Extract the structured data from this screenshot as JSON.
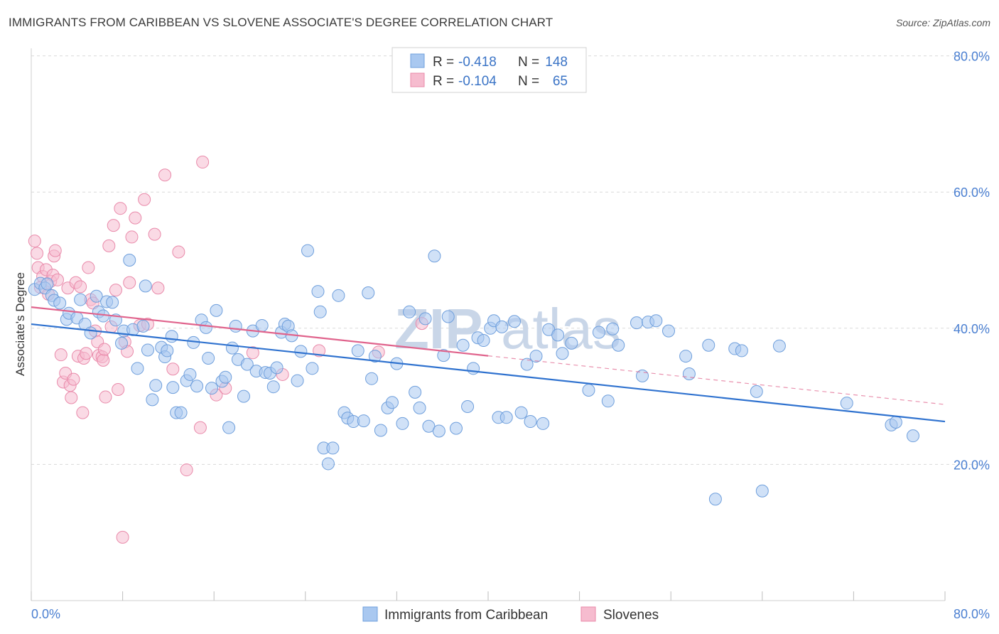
{
  "header": {
    "title": "IMMIGRANTS FROM CARIBBEAN VS SLOVENE ASSOCIATE'S DEGREE CORRELATION CHART",
    "source": "Source: ZipAtlas.com"
  },
  "stats": [
    {
      "r_label": "R =",
      "r_value": "-0.418",
      "n_label": "N =",
      "n_value": "148"
    },
    {
      "r_label": "R =",
      "r_value": "-0.104",
      "n_label": "N =",
      "n_value": "65"
    }
  ],
  "watermark": {
    "zip": "ZIP",
    "atlas": "atlas"
  },
  "colors": {
    "blue_fill": "#a9c8f0",
    "blue_stroke": "#6f9fdc",
    "blue_line": "#2f72cf",
    "pink_fill": "#f6bccf",
    "pink_stroke": "#e98aaa",
    "pink_line": "#e0638c",
    "grid": "#d9d9d9",
    "tick_text": "#4a7fd1"
  },
  "chart_data": {
    "type": "scatter",
    "title": "IMMIGRANTS FROM CARIBBEAN VS SLOVENE ASSOCIATE'S DEGREE CORRELATION CHART",
    "xlabel": "",
    "ylabel": "Associate's Degree",
    "xlim": [
      0,
      80
    ],
    "ylim": [
      0,
      80
    ],
    "x_tick_labels": [
      "0.0%",
      "80.0%"
    ],
    "y_ticks": [
      {
        "value": 20,
        "label": "20.0%"
      },
      {
        "value": 40,
        "label": "40.0%"
      },
      {
        "value": 60,
        "label": "60.0%"
      },
      {
        "value": 80,
        "label": "80.0%"
      }
    ],
    "grid": true,
    "legend": [
      "Immigrants from Caribbean",
      "Slovenes"
    ],
    "series": [
      {
        "name": "Immigrants from Caribbean",
        "r": -0.418,
        "n": 148,
        "trend": {
          "x0": 0,
          "y0": 40.6,
          "x1": 80,
          "y1": 26.3,
          "solid_to": 80
        },
        "points": [
          [
            0.3,
            45.7
          ],
          [
            0.8,
            46.6
          ],
          [
            1.2,
            45.9
          ],
          [
            1.4,
            46.5
          ],
          [
            1.8,
            44.8
          ],
          [
            2.0,
            44.1
          ],
          [
            2.5,
            43.7
          ],
          [
            3.1,
            41.3
          ],
          [
            3.3,
            42.2
          ],
          [
            4.0,
            41.5
          ],
          [
            4.3,
            44.2
          ],
          [
            4.7,
            40.6
          ],
          [
            5.2,
            39.3
          ],
          [
            5.7,
            44.7
          ],
          [
            5.9,
            42.4
          ],
          [
            6.3,
            41.8
          ],
          [
            6.6,
            43.9
          ],
          [
            7.1,
            43.8
          ],
          [
            7.4,
            41.2
          ],
          [
            7.9,
            37.8
          ],
          [
            8.1,
            39.6
          ],
          [
            8.6,
            50.0
          ],
          [
            8.9,
            39.8
          ],
          [
            9.3,
            34.1
          ],
          [
            9.8,
            40.3
          ],
          [
            10.0,
            46.2
          ],
          [
            10.2,
            36.8
          ],
          [
            10.6,
            29.5
          ],
          [
            10.9,
            31.6
          ],
          [
            11.4,
            37.2
          ],
          [
            11.7,
            35.8
          ],
          [
            11.9,
            36.7
          ],
          [
            12.3,
            38.8
          ],
          [
            12.4,
            31.3
          ],
          [
            12.7,
            27.6
          ],
          [
            13.1,
            27.6
          ],
          [
            13.6,
            32.3
          ],
          [
            13.9,
            33.2
          ],
          [
            14.2,
            37.9
          ],
          [
            14.5,
            31.5
          ],
          [
            14.9,
            41.2
          ],
          [
            15.3,
            40.1
          ],
          [
            15.5,
            35.6
          ],
          [
            15.8,
            31.2
          ],
          [
            16.2,
            42.6
          ],
          [
            16.7,
            32.2
          ],
          [
            17.0,
            32.8
          ],
          [
            17.3,
            25.4
          ],
          [
            17.6,
            37.1
          ],
          [
            17.9,
            40.3
          ],
          [
            18.1,
            35.4
          ],
          [
            18.6,
            30.0
          ],
          [
            18.9,
            34.7
          ],
          [
            19.4,
            39.6
          ],
          [
            19.7,
            33.7
          ],
          [
            20.2,
            40.4
          ],
          [
            20.5,
            33.5
          ],
          [
            20.9,
            33.4
          ],
          [
            21.2,
            31.4
          ],
          [
            21.5,
            34.2
          ],
          [
            21.9,
            39.4
          ],
          [
            22.2,
            40.6
          ],
          [
            22.5,
            40.3
          ],
          [
            22.8,
            38.9
          ],
          [
            23.3,
            32.3
          ],
          [
            23.6,
            36.6
          ],
          [
            24.2,
            51.4
          ],
          [
            24.6,
            34.1
          ],
          [
            25.1,
            45.4
          ],
          [
            25.3,
            42.4
          ],
          [
            25.6,
            22.4
          ],
          [
            26.0,
            20.1
          ],
          [
            26.4,
            22.4
          ],
          [
            26.9,
            44.8
          ],
          [
            27.4,
            27.6
          ],
          [
            27.7,
            26.8
          ],
          [
            28.2,
            26.3
          ],
          [
            28.6,
            36.7
          ],
          [
            29.1,
            26.4
          ],
          [
            29.5,
            45.2
          ],
          [
            29.8,
            32.6
          ],
          [
            30.1,
            35.9
          ],
          [
            30.6,
            25.0
          ],
          [
            31.2,
            28.3
          ],
          [
            31.6,
            29.1
          ],
          [
            32.0,
            34.8
          ],
          [
            32.5,
            26.0
          ],
          [
            33.1,
            42.4
          ],
          [
            33.6,
            30.6
          ],
          [
            34.0,
            28.3
          ],
          [
            34.5,
            41.4
          ],
          [
            34.8,
            25.6
          ],
          [
            35.3,
            50.6
          ],
          [
            35.7,
            24.9
          ],
          [
            36.1,
            36.0
          ],
          [
            36.5,
            41.7
          ],
          [
            37.2,
            25.3
          ],
          [
            37.8,
            37.5
          ],
          [
            38.2,
            28.5
          ],
          [
            38.7,
            34.1
          ],
          [
            39.1,
            38.6
          ],
          [
            39.6,
            38.2
          ],
          [
            40.2,
            40.0
          ],
          [
            40.5,
            41.1
          ],
          [
            40.9,
            26.9
          ],
          [
            41.2,
            40.2
          ],
          [
            41.6,
            26.9
          ],
          [
            42.3,
            41.0
          ],
          [
            42.9,
            27.6
          ],
          [
            43.4,
            34.7
          ],
          [
            43.7,
            26.3
          ],
          [
            44.2,
            35.9
          ],
          [
            44.8,
            26.0
          ],
          [
            45.3,
            39.8
          ],
          [
            46.1,
            39.0
          ],
          [
            46.5,
            36.3
          ],
          [
            47.3,
            37.8
          ],
          [
            48.8,
            30.9
          ],
          [
            49.7,
            39.4
          ],
          [
            50.5,
            29.3
          ],
          [
            50.9,
            39.9
          ],
          [
            51.4,
            37.5
          ],
          [
            53.0,
            40.8
          ],
          [
            53.5,
            33.0
          ],
          [
            54.0,
            40.9
          ],
          [
            54.7,
            41.1
          ],
          [
            55.8,
            39.6
          ],
          [
            57.3,
            35.9
          ],
          [
            57.6,
            33.3
          ],
          [
            59.3,
            37.5
          ],
          [
            59.9,
            14.9
          ],
          [
            61.6,
            37.0
          ],
          [
            62.2,
            36.7
          ],
          [
            63.5,
            30.7
          ],
          [
            64.0,
            16.1
          ],
          [
            65.5,
            37.4
          ],
          [
            71.4,
            29.0
          ],
          [
            75.3,
            25.8
          ],
          [
            75.7,
            26.2
          ],
          [
            77.2,
            24.2
          ]
        ]
      },
      {
        "name": "Slovenes",
        "r": -0.104,
        "n": 65,
        "trend": {
          "x0": 0,
          "y0": 43.1,
          "x1": 80,
          "y1": 28.8,
          "solid_to": 40
        },
        "points": [
          [
            0.3,
            52.8
          ],
          [
            0.5,
            51.0
          ],
          [
            0.6,
            48.9
          ],
          [
            0.8,
            46.0
          ],
          [
            1.0,
            47.6
          ],
          [
            1.3,
            48.6
          ],
          [
            1.5,
            45.0
          ],
          [
            1.7,
            46.9
          ],
          [
            1.9,
            47.8
          ],
          [
            2.0,
            50.6
          ],
          [
            2.1,
            51.4
          ],
          [
            2.3,
            47.1
          ],
          [
            2.6,
            36.1
          ],
          [
            2.8,
            32.1
          ],
          [
            3.0,
            33.4
          ],
          [
            3.2,
            45.9
          ],
          [
            3.4,
            31.6
          ],
          [
            3.5,
            29.8
          ],
          [
            3.7,
            32.5
          ],
          [
            3.9,
            46.7
          ],
          [
            4.1,
            35.9
          ],
          [
            4.3,
            46.1
          ],
          [
            4.5,
            27.6
          ],
          [
            4.6,
            35.6
          ],
          [
            4.8,
            36.3
          ],
          [
            5.0,
            48.9
          ],
          [
            5.2,
            44.2
          ],
          [
            5.4,
            43.7
          ],
          [
            5.6,
            39.6
          ],
          [
            5.8,
            38.0
          ],
          [
            5.9,
            36.0
          ],
          [
            6.2,
            35.8
          ],
          [
            6.3,
            35.3
          ],
          [
            6.4,
            36.9
          ],
          [
            6.5,
            29.9
          ],
          [
            6.8,
            52.1
          ],
          [
            7.0,
            40.2
          ],
          [
            7.2,
            55.1
          ],
          [
            7.4,
            45.6
          ],
          [
            7.6,
            31.0
          ],
          [
            7.8,
            57.6
          ],
          [
            8.0,
            9.3
          ],
          [
            8.2,
            38.0
          ],
          [
            8.4,
            36.6
          ],
          [
            8.6,
            46.7
          ],
          [
            8.8,
            53.4
          ],
          [
            9.1,
            56.2
          ],
          [
            9.5,
            40.4
          ],
          [
            9.9,
            58.9
          ],
          [
            10.2,
            40.6
          ],
          [
            10.8,
            53.8
          ],
          [
            11.1,
            45.9
          ],
          [
            11.7,
            62.5
          ],
          [
            12.4,
            34.0
          ],
          [
            12.9,
            51.2
          ],
          [
            13.6,
            19.2
          ],
          [
            14.8,
            25.4
          ],
          [
            15.0,
            64.4
          ],
          [
            16.2,
            30.2
          ],
          [
            17.0,
            31.2
          ],
          [
            19.4,
            36.4
          ],
          [
            22.0,
            33.2
          ],
          [
            25.2,
            36.7
          ],
          [
            30.4,
            36.5
          ],
          [
            34.2,
            40.7
          ]
        ]
      }
    ]
  }
}
